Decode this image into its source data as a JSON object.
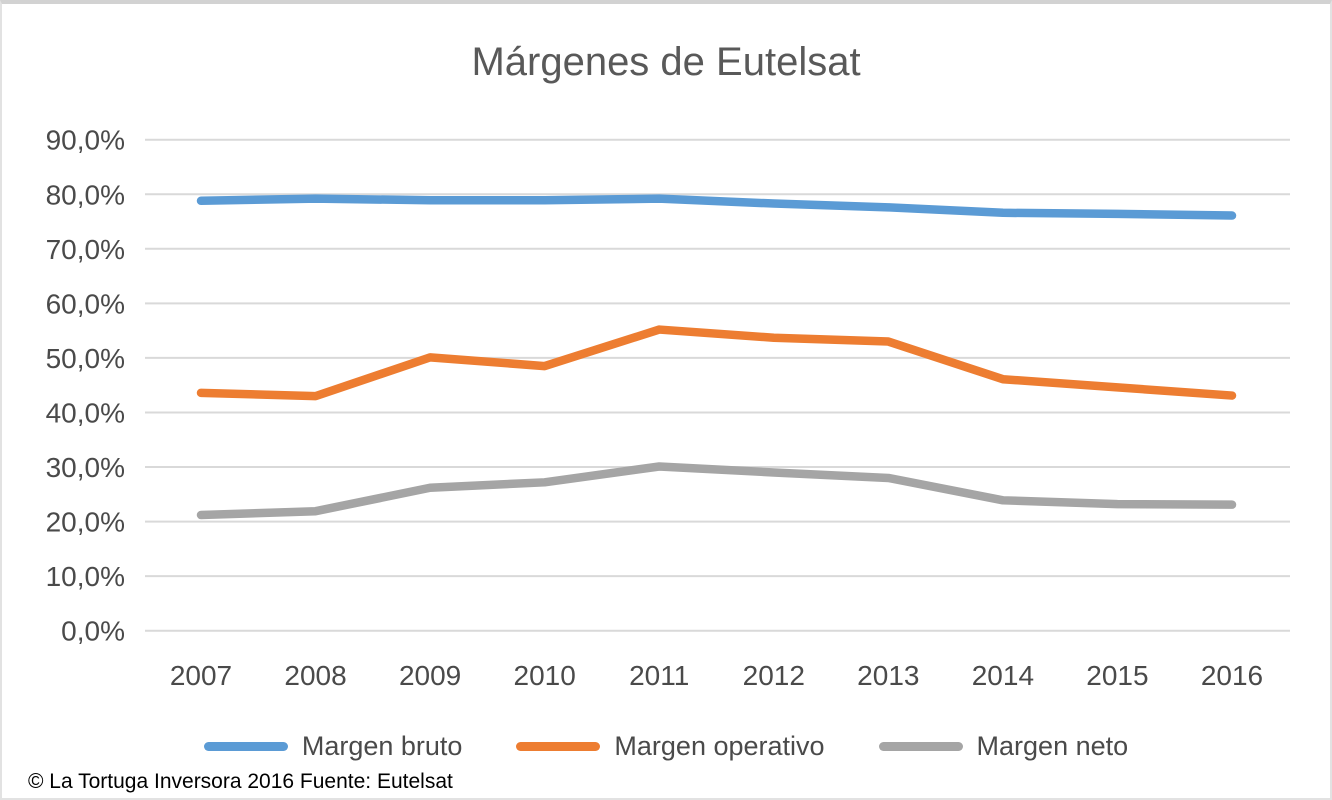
{
  "footer": {
    "credit": "© La Tortuga Inversora 2016 Fuente: Eutelsat"
  },
  "chart_data": {
    "type": "line",
    "title": "Márgenes de Eutelsat",
    "categories": [
      "2007",
      "2008",
      "2009",
      "2010",
      "2011",
      "2012",
      "2013",
      "2014",
      "2015",
      "2016"
    ],
    "series": [
      {
        "name": "Margen bruto",
        "color": "#5B9BD5",
        "values": [
          78.8,
          79.2,
          78.9,
          78.9,
          79.2,
          78.3,
          77.6,
          76.6,
          76.4,
          76.1
        ]
      },
      {
        "name": "Margen operativo",
        "color": "#ED7D31",
        "values": [
          43.6,
          43.0,
          50.1,
          48.5,
          55.2,
          53.7,
          53.0,
          46.1,
          44.6,
          43.1
        ]
      },
      {
        "name": "Margen neto",
        "color": "#A5A5A5",
        "values": [
          21.2,
          21.9,
          26.2,
          27.2,
          30.1,
          29.0,
          28.0,
          23.9,
          23.2,
          23.1
        ]
      }
    ],
    "y_axis": {
      "min": 0,
      "max": 90,
      "step": 10,
      "tick_labels": [
        "0,0%",
        "10,0%",
        "20,0%",
        "30,0%",
        "40,0%",
        "50,0%",
        "60,0%",
        "70,0%",
        "80,0%",
        "90,0%"
      ]
    },
    "x_axis": {
      "label": ""
    },
    "grid": "horizontal",
    "gridline_color": "#D9D9D9",
    "tick_text_color": "#4a4a4a",
    "title_color": "#595959",
    "legend_position": "bottom",
    "line_width": 8.5
  }
}
